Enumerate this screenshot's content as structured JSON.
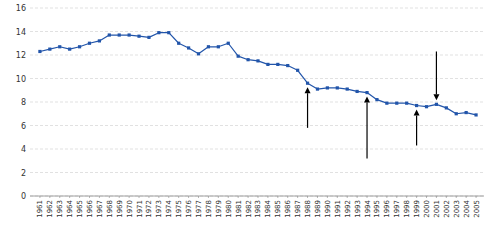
{
  "chart_data": {
    "type": "line",
    "x": [
      1961,
      1962,
      1963,
      1964,
      1965,
      1966,
      1967,
      1968,
      1969,
      1970,
      1971,
      1972,
      1973,
      1974,
      1975,
      1976,
      1977,
      1978,
      1979,
      1980,
      1981,
      1982,
      1983,
      1984,
      1985,
      1986,
      1987,
      1988,
      1989,
      1990,
      1991,
      1992,
      1993,
      1994,
      1995,
      1996,
      1997,
      1998,
      1999,
      2000,
      2001,
      2002,
      2003,
      2004,
      2005
    ],
    "values": [
      12.3,
      12.5,
      12.7,
      12.5,
      12.7,
      13.0,
      13.2,
      13.7,
      13.7,
      13.7,
      13.6,
      13.5,
      13.9,
      13.9,
      13.0,
      12.6,
      12.1,
      12.7,
      12.7,
      13.0,
      11.9,
      11.6,
      11.5,
      11.2,
      11.2,
      11.1,
      10.7,
      9.6,
      9.1,
      9.2,
      9.2,
      9.1,
      8.9,
      8.8,
      8.2,
      7.9,
      7.9,
      7.9,
      7.7,
      7.6,
      7.8,
      7.5,
      7.0,
      7.1,
      6.9
    ],
    "color": "#2255AA",
    "marker": "square",
    "xlim": [
      1960.0,
      2005.8
    ],
    "xticks": [
      1961,
      1962,
      1963,
      1964,
      1965,
      1966,
      1967,
      1968,
      1969,
      1970,
      1971,
      1972,
      1973,
      1974,
      1975,
      1976,
      1977,
      1978,
      1979,
      1980,
      1981,
      1982,
      1983,
      1984,
      1985,
      1986,
      1987,
      1988,
      1989,
      1990,
      1991,
      1992,
      1993,
      1994,
      1995,
      1996,
      1997,
      1998,
      1999,
      2000,
      2001,
      2002,
      2003,
      2004,
      2005
    ],
    "ylim": [
      0,
      16
    ],
    "yticks": [
      0,
      2,
      4,
      6,
      8,
      10,
      12,
      14,
      16
    ],
    "grid": true,
    "annotations": [
      {
        "x": 1988,
        "y": 9.6,
        "y_from": 5.8
      },
      {
        "x": 1994,
        "y": 8.8,
        "y_from": 3.2
      },
      {
        "x": 1999,
        "y": 7.7,
        "y_from": 4.3
      },
      {
        "x": 2001,
        "y": 7.8,
        "y_from": 12.3
      }
    ]
  }
}
